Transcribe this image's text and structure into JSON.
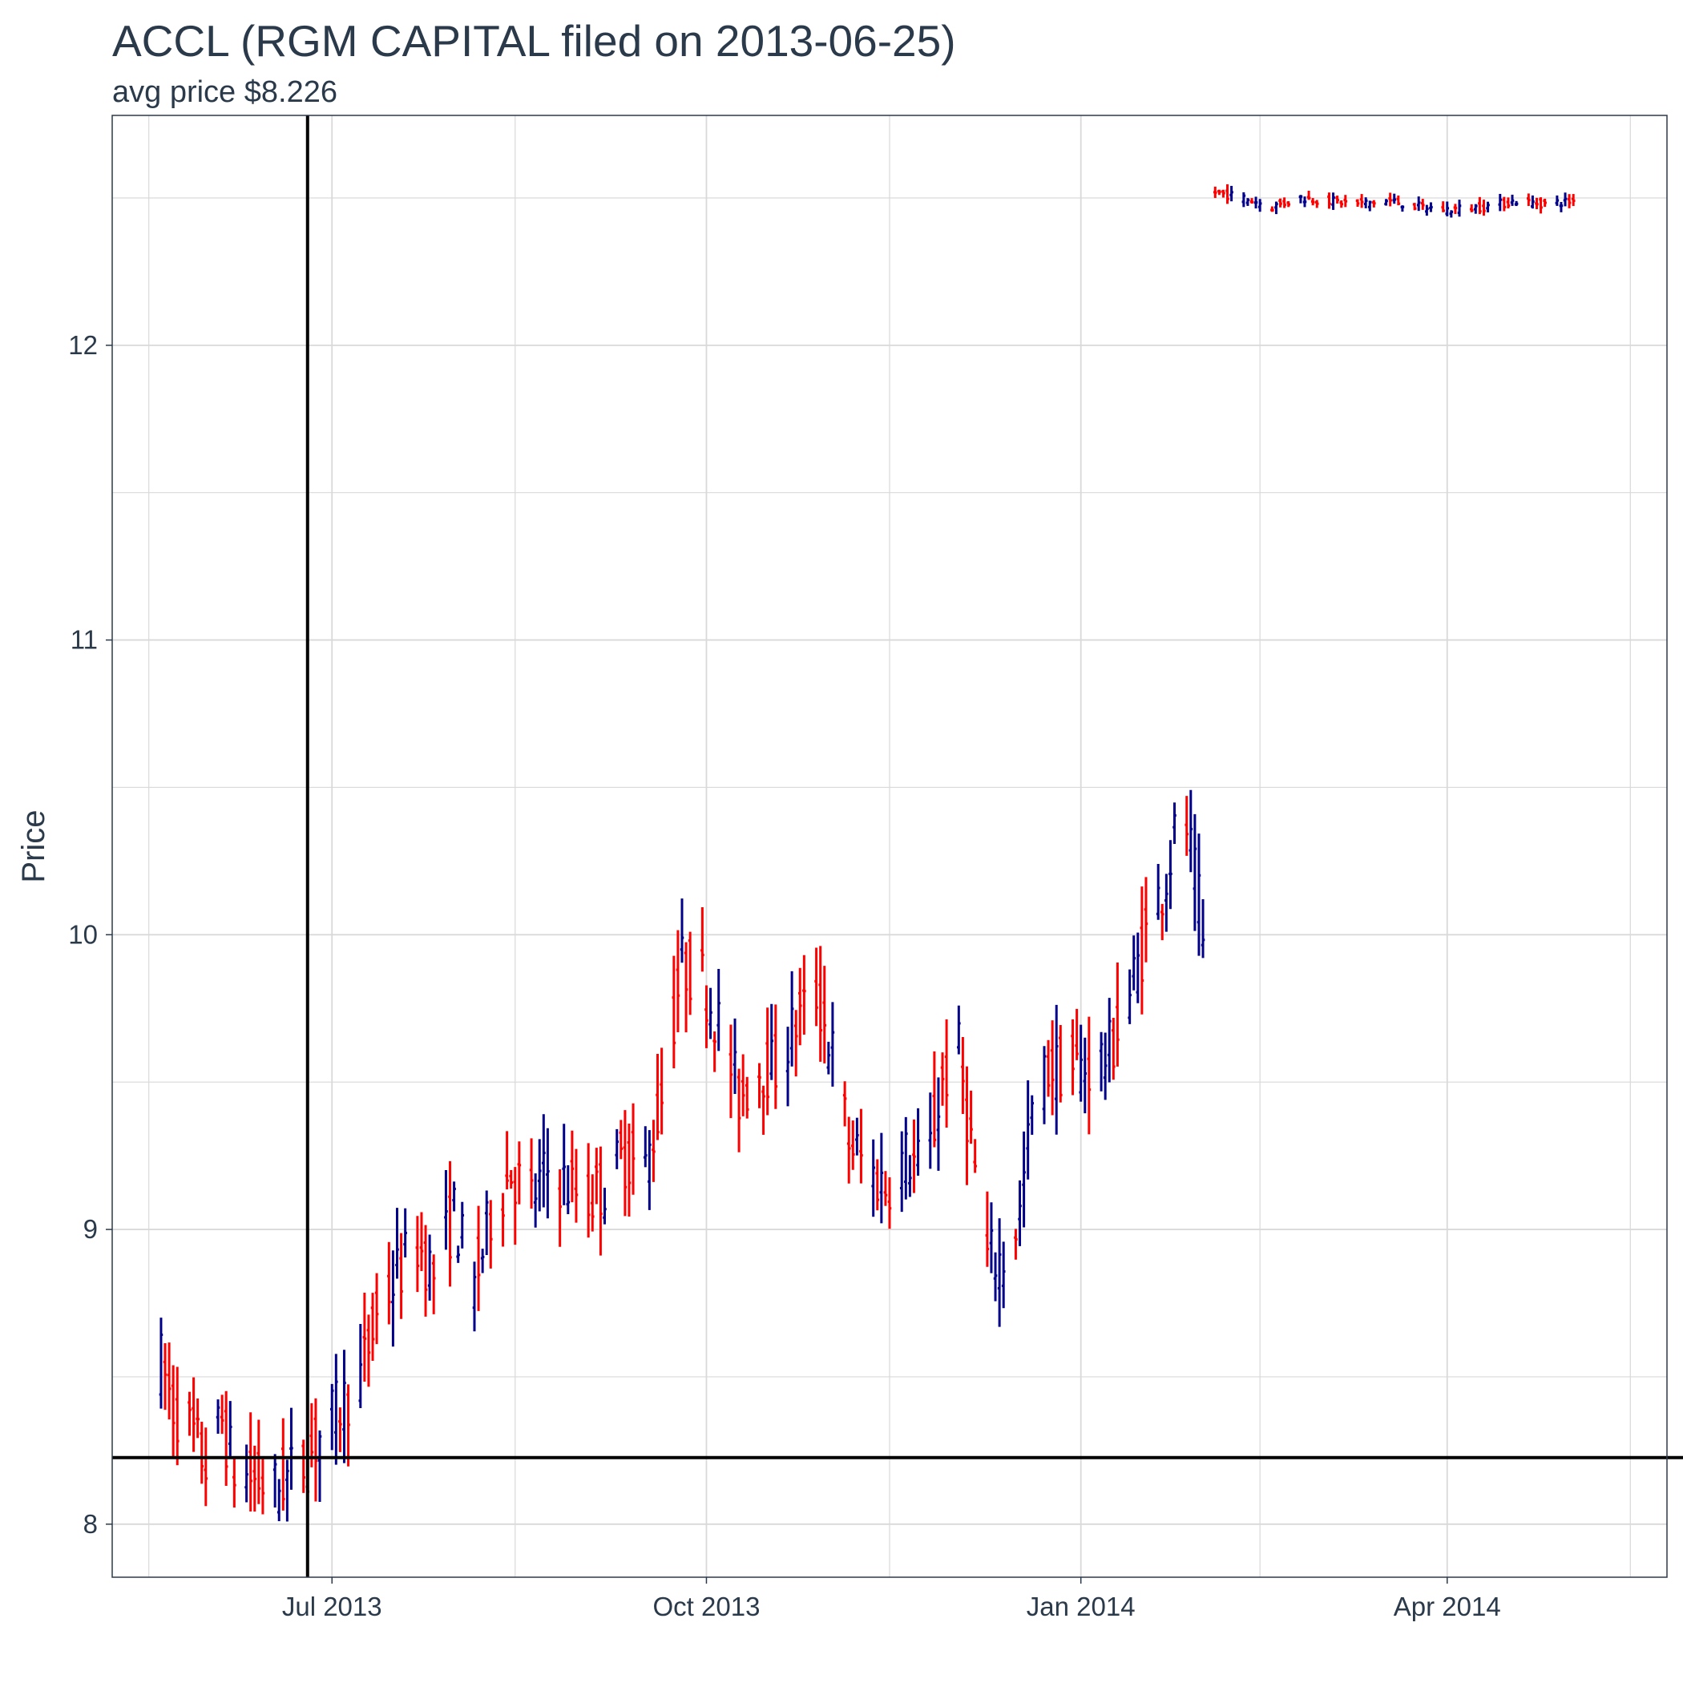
{
  "chart_data": {
    "type": "ohlc",
    "title": "ACCL (RGM CAPITAL filed on 2013-06-25)",
    "subtitle": "avg price $8.226",
    "ylabel": "Price",
    "xlabel": "",
    "x_range": [
      "2013-05-08",
      "2014-05-25"
    ],
    "ylim": [
      7.82,
      12.78
    ],
    "y_ticks": [
      8,
      9,
      10,
      11,
      12
    ],
    "y_minor_ticks": [
      8.5,
      9.5,
      10.5,
      11.5,
      12.5
    ],
    "x_ticks": [
      {
        "date": "2013-07-01",
        "label": "Jul 2013"
      },
      {
        "date": "2013-10-01",
        "label": "Oct 2013"
      },
      {
        "date": "2014-01-01",
        "label": "Jan 2014"
      },
      {
        "date": "2014-04-01",
        "label": "Apr 2014"
      }
    ],
    "x_minor_ticks": [
      "2013-05-17",
      "2013-08-15",
      "2013-11-15",
      "2014-02-14",
      "2014-05-16"
    ],
    "grid": true,
    "reference_lines": {
      "filing_date": "2013-06-25",
      "avg_price": 8.226
    },
    "colors": {
      "up": "#00008b",
      "down": "#ff0000",
      "grid": "#d9d9d9",
      "frame": "#2b3a4a",
      "reference": "#000000",
      "text": "#2b3a4a"
    },
    "anchors": [
      [
        "2013-05-20",
        8.55
      ],
      [
        "2013-05-23",
        8.4
      ],
      [
        "2013-05-28",
        8.3
      ],
      [
        "2013-05-31",
        8.2
      ],
      [
        "2013-06-04",
        8.35
      ],
      [
        "2013-06-07",
        8.18
      ],
      [
        "2013-06-12",
        8.15
      ],
      [
        "2013-06-17",
        8.12
      ],
      [
        "2013-06-20",
        8.16
      ],
      [
        "2013-06-25",
        8.22
      ],
      [
        "2013-06-28",
        8.3
      ],
      [
        "2013-07-03",
        8.4
      ],
      [
        "2013-07-08",
        8.5
      ],
      [
        "2013-07-12",
        8.7
      ],
      [
        "2013-07-17",
        8.85
      ],
      [
        "2013-07-22",
        8.95
      ],
      [
        "2013-07-26",
        8.85
      ],
      [
        "2013-07-31",
        9.05
      ],
      [
        "2013-08-05",
        8.8
      ],
      [
        "2013-08-09",
        9.05
      ],
      [
        "2013-08-14",
        9.2
      ],
      [
        "2013-08-19",
        9.1
      ],
      [
        "2013-08-23",
        9.2
      ],
      [
        "2013-08-28",
        9.15
      ],
      [
        "2013-09-02",
        9.1
      ],
      [
        "2013-09-06",
        9.15
      ],
      [
        "2013-09-11",
        9.25
      ],
      [
        "2013-09-16",
        9.2
      ],
      [
        "2013-09-20",
        9.45
      ],
      [
        "2013-09-25",
        9.9
      ],
      [
        "2013-09-30",
        9.85
      ],
      [
        "2013-10-04",
        9.7
      ],
      [
        "2013-10-09",
        9.45
      ],
      [
        "2013-10-14",
        9.55
      ],
      [
        "2013-10-18",
        9.55
      ],
      [
        "2013-10-23",
        9.7
      ],
      [
        "2013-10-28",
        9.8
      ],
      [
        "2013-11-01",
        9.6
      ],
      [
        "2013-11-05",
        9.3
      ],
      [
        "2013-11-10",
        9.2
      ],
      [
        "2013-11-14",
        9.15
      ],
      [
        "2013-11-19",
        9.25
      ],
      [
        "2013-11-24",
        9.2
      ],
      [
        "2013-11-28",
        9.5
      ],
      [
        "2013-12-02",
        9.6
      ],
      [
        "2013-12-05",
        9.3
      ],
      [
        "2013-12-09",
        8.9
      ],
      [
        "2013-12-13",
        8.9
      ],
      [
        "2013-12-17",
        9.05
      ],
      [
        "2013-12-20",
        9.4
      ],
      [
        "2013-12-24",
        9.55
      ],
      [
        "2013-12-29",
        9.55
      ],
      [
        "2014-01-03",
        9.55
      ],
      [
        "2014-01-08",
        9.6
      ],
      [
        "2014-01-13",
        9.8
      ],
      [
        "2014-01-17",
        10.0
      ],
      [
        "2014-01-22",
        10.2
      ],
      [
        "2014-01-26",
        10.45
      ],
      [
        "2014-01-30",
        10.1
      ],
      [
        "2014-02-01",
        9.8
      ]
    ],
    "anchors_late": [
      [
        "2014-02-03",
        12.52
      ],
      [
        "2014-02-10",
        12.5
      ],
      [
        "2014-02-17",
        12.47
      ],
      [
        "2014-02-24",
        12.5
      ],
      [
        "2014-03-03",
        12.49
      ],
      [
        "2014-03-10",
        12.48
      ],
      [
        "2014-03-18",
        12.49
      ],
      [
        "2014-03-25",
        12.47
      ],
      [
        "2014-04-01",
        12.46
      ],
      [
        "2014-04-10",
        12.47
      ],
      [
        "2014-04-18",
        12.49
      ],
      [
        "2014-04-25",
        12.48
      ],
      [
        "2014-05-02",
        12.49
      ]
    ]
  }
}
